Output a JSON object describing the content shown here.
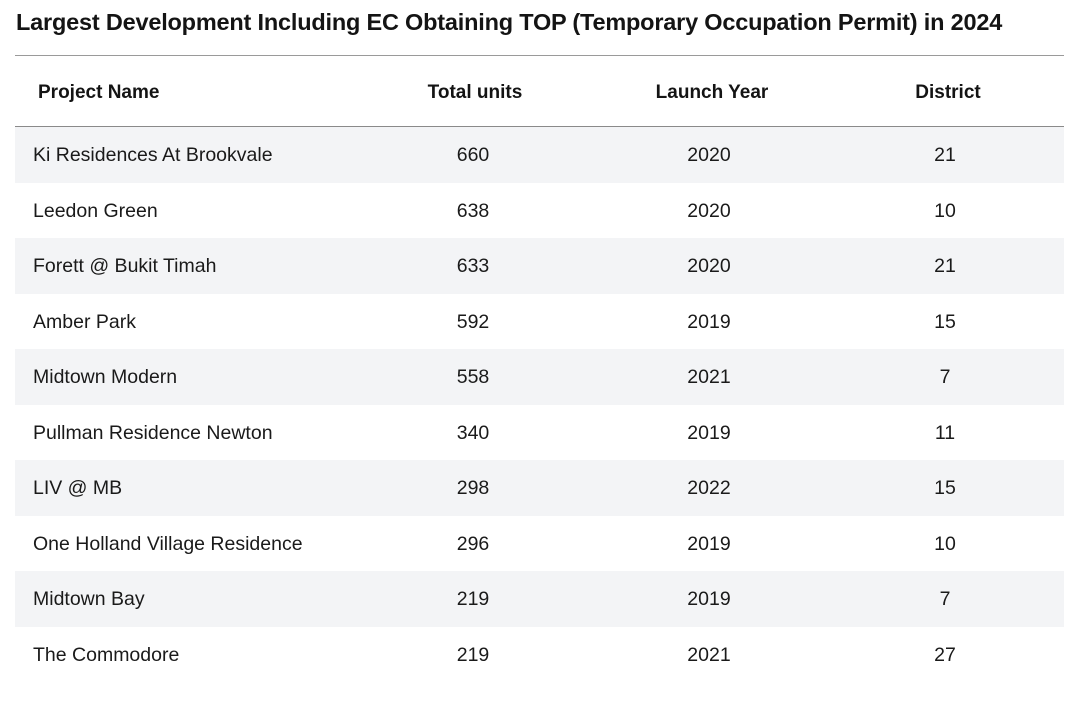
{
  "chart_data": {
    "type": "table",
    "title": "Largest Development Including EC Obtaining TOP (Temporary Occupation Permit) in 2024",
    "columns": [
      "Project Name",
      "Total units",
      "Launch Year",
      "District"
    ],
    "rows": [
      [
        "Ki Residences At Brookvale",
        "660",
        "2020",
        "21"
      ],
      [
        "Leedon Green",
        "638",
        "2020",
        "10"
      ],
      [
        "Forett @ Bukit Timah",
        "633",
        "2020",
        "21"
      ],
      [
        "Amber Park",
        "592",
        "2019",
        "15"
      ],
      [
        "Midtown Modern",
        "558",
        "2021",
        "7"
      ],
      [
        "Pullman Residence Newton",
        "340",
        "2019",
        "11"
      ],
      [
        "LIV @ MB",
        "298",
        "2022",
        "15"
      ],
      [
        "One Holland Village Residence",
        "296",
        "2019",
        "10"
      ],
      [
        "Midtown Bay",
        "219",
        "2019",
        "7"
      ],
      [
        "The Commodore",
        "219",
        "2021",
        "27"
      ]
    ],
    "colors": {
      "shaded_row": "#f3f4f6",
      "rule": "#8a8a8a"
    }
  }
}
